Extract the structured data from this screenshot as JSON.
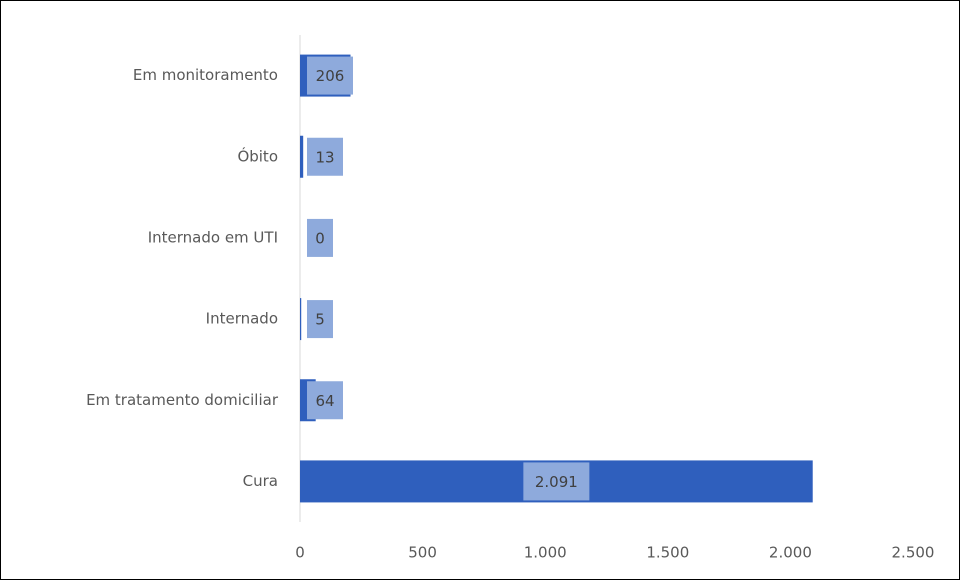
{
  "chart_data": {
    "type": "bar",
    "orientation": "horizontal",
    "categories": [
      "Em monitoramento",
      "Óbito",
      "Internado em UTI",
      "Internado",
      "Em tratamento domiciliar",
      "Cura"
    ],
    "values": [
      206,
      13,
      0,
      5,
      64,
      2091
    ],
    "value_labels": [
      "206",
      "13",
      "0",
      "5",
      "64",
      "2.091"
    ],
    "color": "#2f5fbd",
    "xlim": [
      0,
      2500
    ],
    "xticks": [
      0,
      500,
      {
        "value": 1000,
        "label": "1.000"
      },
      {
        "value": 1500,
        "label": "1.500"
      },
      {
        "value": 2000,
        "label": "2.000"
      },
      {
        "value": 2500,
        "label": "2.500"
      }
    ],
    "grid": false
  }
}
